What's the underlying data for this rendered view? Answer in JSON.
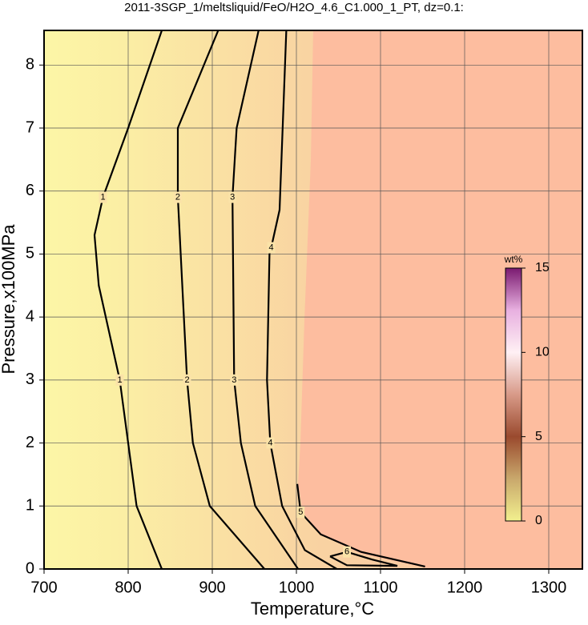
{
  "chart_data": {
    "type": "contour",
    "title": "2011-3SGP_1/meltsliquid/FeO/H2O_4.6_C1.000_1_PT, dz=0.1:",
    "x_label": "Temperature,°C",
    "y_label": "Pressure,x100MPa",
    "xlim": [
      700,
      1340
    ],
    "ylim": [
      0,
      8.55
    ],
    "xticks": [
      700,
      800,
      900,
      1000,
      1100,
      1200,
      1300
    ],
    "yticks": [
      0,
      1,
      2,
      3,
      4,
      5,
      6,
      7,
      8
    ],
    "grid": true,
    "line_color": "#000000",
    "contours": [
      {
        "level": 1,
        "x": [
          840,
          800,
          770,
          760,
          765,
          790,
          800,
          810,
          840
        ],
        "y": [
          8.55,
          7,
          5.9,
          5.3,
          4.5,
          3,
          2,
          1,
          0
        ]
      },
      {
        "level": 2,
        "x": [
          907,
          859,
          859,
          870,
          877,
          897,
          962
        ],
        "y": [
          8.55,
          7,
          5.9,
          3,
          2,
          1,
          0
        ]
      },
      {
        "level": 3,
        "x": [
          955,
          929,
          924,
          926,
          934,
          951,
          1002
        ],
        "y": [
          8.55,
          7,
          5.9,
          3,
          2,
          1,
          0
        ]
      },
      {
        "level": 4,
        "x": [
          988,
          980,
          970,
          968,
          965,
          969,
          983,
          1010,
          1048
        ],
        "y": [
          8.55,
          5.7,
          5.1,
          5,
          3,
          2,
          1,
          0.3,
          0
        ]
      },
      {
        "level": 5,
        "x": [
          1001,
          1005,
          1029,
          1077,
          1153
        ],
        "y": [
          1.35,
          0.9,
          0.55,
          0.27,
          0.04
        ]
      },
      {
        "level": 6,
        "x": [
          1040,
          1060,
          1090,
          1120,
          1060,
          1040
        ],
        "y": [
          0.2,
          0.27,
          0.15,
          0.05,
          0.06,
          0.2
        ]
      }
    ],
    "colorbar": {
      "label": "wt%",
      "range": [
        0,
        15
      ],
      "ticks": [
        0,
        5,
        10,
        15
      ],
      "colors": [
        "#f2f08e",
        "#c9a86c",
        "#9a4a2e",
        "#d89a88",
        "#fff0f4",
        "#e8b0e0",
        "#7a1a70"
      ]
    }
  }
}
